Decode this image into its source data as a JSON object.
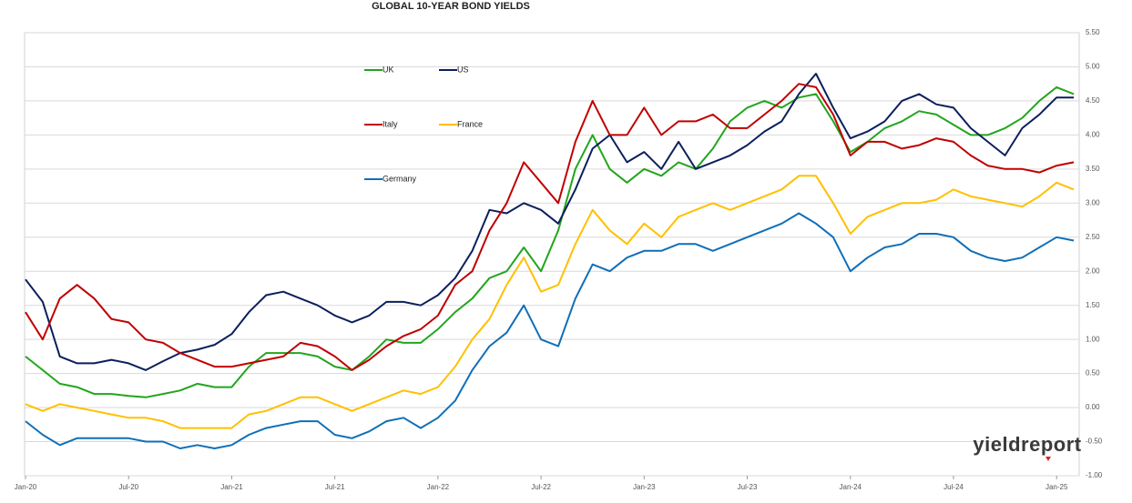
{
  "chart_data": {
    "type": "line",
    "title": "GLOBAL 10-YEAR BOND YIELDS",
    "logo": "yieldreport",
    "categories": [
      "Jan-20",
      null,
      null,
      null,
      null,
      null,
      "Jul-20",
      null,
      null,
      null,
      null,
      null,
      "Jan-21",
      null,
      null,
      null,
      null,
      null,
      "Jul-21",
      null,
      null,
      null,
      null,
      null,
      "Jan-22",
      null,
      null,
      null,
      null,
      null,
      "Jul-22",
      null,
      null,
      null,
      null,
      null,
      "Jan-23",
      null,
      null,
      null,
      null,
      null,
      "Jul-23",
      null,
      null,
      null,
      null,
      null,
      "Jan-24",
      null,
      null,
      null,
      null,
      null,
      "Jul-24",
      null,
      null,
      null,
      null,
      null,
      "Jan-25",
      null
    ],
    "ylim": [
      -1,
      5.5
    ],
    "yticks": [
      {
        "value": -1,
        "label": "-1.00"
      },
      {
        "value": -0.5,
        "label": "-0.50"
      },
      {
        "value": 0,
        "label": "0.00"
      },
      {
        "value": 0.5,
        "label": "0.50"
      },
      {
        "value": 1,
        "label": "1.00"
      },
      {
        "value": 1.5,
        "label": "1.50"
      },
      {
        "value": 2,
        "label": "2.00"
      },
      {
        "value": 2.5,
        "label": "2.50"
      },
      {
        "value": 3,
        "label": "3.00"
      },
      {
        "value": 3.5,
        "label": "3.50"
      },
      {
        "value": 4,
        "label": "4.00"
      },
      {
        "value": 4.5,
        "label": "4.50"
      },
      {
        "value": 5,
        "label": "5.00"
      },
      {
        "value": 5.5,
        "label": "5.50"
      }
    ],
    "grid": true,
    "series": [
      {
        "name": "UK",
        "color": "#22a51d",
        "values": [
          0.75,
          0.55,
          0.35,
          0.3,
          0.2,
          0.2,
          0.17,
          0.15,
          0.2,
          0.25,
          0.35,
          0.3,
          0.3,
          0.6,
          0.8,
          0.8,
          0.8,
          0.75,
          0.6,
          0.55,
          0.75,
          1.0,
          0.95,
          0.95,
          1.15,
          1.4,
          1.6,
          1.9,
          2.0,
          2.35,
          2.0,
          2.6,
          3.5,
          4.0,
          3.5,
          3.3,
          3.5,
          3.4,
          3.6,
          3.5,
          3.8,
          4.2,
          4.4,
          4.5,
          4.4,
          4.55,
          4.6,
          4.2,
          3.75,
          3.9,
          4.1,
          4.2,
          4.35,
          4.3,
          4.15,
          4.0,
          4.0,
          4.1,
          4.25,
          4.5,
          4.7,
          4.6
        ]
      },
      {
        "name": "US",
        "color": "#0b1f5c",
        "values": [
          1.88,
          1.55,
          0.75,
          0.65,
          0.65,
          0.7,
          0.65,
          0.55,
          0.68,
          0.8,
          0.85,
          0.92,
          1.08,
          1.4,
          1.65,
          1.7,
          1.6,
          1.5,
          1.35,
          1.25,
          1.35,
          1.55,
          1.55,
          1.5,
          1.65,
          1.9,
          2.3,
          2.9,
          2.85,
          3.0,
          2.9,
          2.7,
          3.2,
          3.8,
          4.0,
          3.6,
          3.75,
          3.5,
          3.9,
          3.5,
          3.6,
          3.7,
          3.85,
          4.05,
          4.2,
          4.6,
          4.9,
          4.4,
          3.95,
          4.05,
          4.2,
          4.5,
          4.6,
          4.45,
          4.4,
          4.1,
          3.9,
          3.7,
          4.1,
          4.3,
          4.55,
          4.55
        ]
      },
      {
        "name": "Italy",
        "color": "#c00000",
        "values": [
          1.4,
          1.0,
          1.6,
          1.8,
          1.6,
          1.3,
          1.25,
          1.0,
          0.95,
          0.8,
          0.7,
          0.6,
          0.6,
          0.65,
          0.7,
          0.75,
          0.95,
          0.9,
          0.75,
          0.55,
          0.7,
          0.9,
          1.05,
          1.15,
          1.35,
          1.8,
          2.0,
          2.6,
          3.0,
          3.6,
          3.3,
          3.0,
          3.9,
          4.5,
          4.0,
          4.0,
          4.4,
          4.0,
          4.2,
          4.2,
          4.3,
          4.1,
          4.1,
          4.3,
          4.5,
          4.75,
          4.7,
          4.3,
          3.7,
          3.9,
          3.9,
          3.8,
          3.85,
          3.95,
          3.9,
          3.7,
          3.55,
          3.5,
          3.5,
          3.45,
          3.55,
          3.6
        ]
      },
      {
        "name": "France",
        "color": "#ffc000",
        "values": [
          0.05,
          -0.05,
          0.05,
          0.0,
          -0.05,
          -0.1,
          -0.15,
          -0.15,
          -0.2,
          -0.3,
          -0.3,
          -0.3,
          -0.3,
          -0.1,
          -0.05,
          0.05,
          0.15,
          0.15,
          0.05,
          -0.05,
          0.05,
          0.15,
          0.25,
          0.2,
          0.3,
          0.6,
          1.0,
          1.3,
          1.8,
          2.2,
          1.7,
          1.8,
          2.4,
          2.9,
          2.6,
          2.4,
          2.7,
          2.5,
          2.8,
          2.9,
          3.0,
          2.9,
          3.0,
          3.1,
          3.2,
          3.4,
          3.4,
          3.0,
          2.55,
          2.8,
          2.9,
          3.0,
          3.0,
          3.05,
          3.2,
          3.1,
          3.05,
          3.0,
          2.95,
          3.1,
          3.3,
          3.2
        ]
      },
      {
        "name": "Germany",
        "color": "#0f6fb8",
        "values": [
          -0.2,
          -0.4,
          -0.55,
          -0.45,
          -0.45,
          -0.45,
          -0.45,
          -0.5,
          -0.5,
          -0.6,
          -0.55,
          -0.6,
          -0.55,
          -0.4,
          -0.3,
          -0.25,
          -0.2,
          -0.2,
          -0.4,
          -0.45,
          -0.35,
          -0.2,
          -0.15,
          -0.3,
          -0.15,
          0.1,
          0.55,
          0.9,
          1.1,
          1.5,
          1.0,
          0.9,
          1.6,
          2.1,
          2.0,
          2.2,
          2.3,
          2.3,
          2.4,
          2.4,
          2.3,
          2.4,
          2.5,
          2.6,
          2.7,
          2.85,
          2.7,
          2.5,
          2.0,
          2.2,
          2.35,
          2.4,
          2.55,
          2.55,
          2.5,
          2.3,
          2.2,
          2.15,
          2.2,
          2.35,
          2.5,
          2.45
        ]
      }
    ]
  }
}
